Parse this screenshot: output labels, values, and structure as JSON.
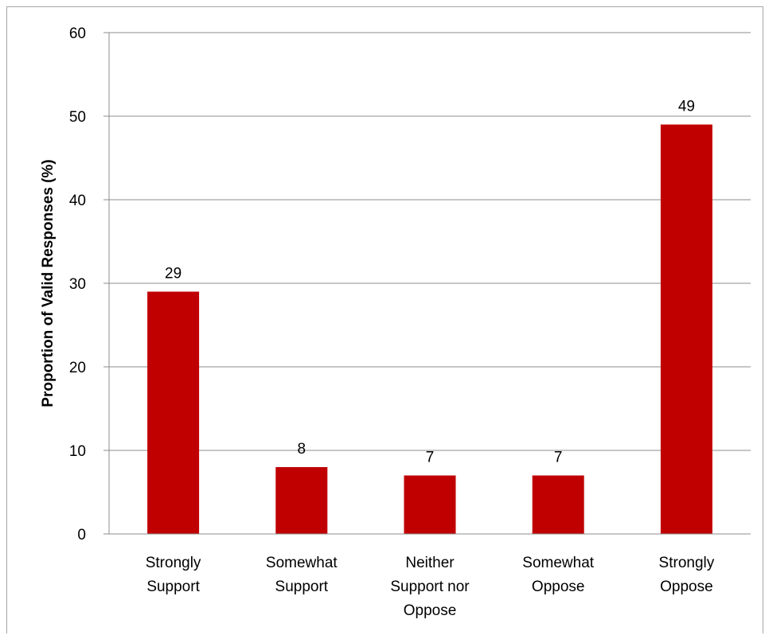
{
  "chart_data": {
    "type": "bar",
    "categories": [
      [
        "Strongly",
        "Support"
      ],
      [
        "Somewhat",
        "Support"
      ],
      [
        "Neither",
        "Support nor",
        "Oppose"
      ],
      [
        "Somewhat",
        "Oppose"
      ],
      [
        "Strongly",
        "Oppose"
      ]
    ],
    "values": [
      29,
      8,
      7,
      7,
      49
    ],
    "data_labels": [
      "29",
      "8",
      "7",
      "7",
      "49"
    ],
    "ylabel": "Proportion of Valid Responses (%)",
    "ylim": [
      0,
      60
    ],
    "yticks": [
      "0",
      "10",
      "20",
      "30",
      "40",
      "50",
      "60"
    ],
    "grid": true,
    "bar_color": "#c00000"
  }
}
